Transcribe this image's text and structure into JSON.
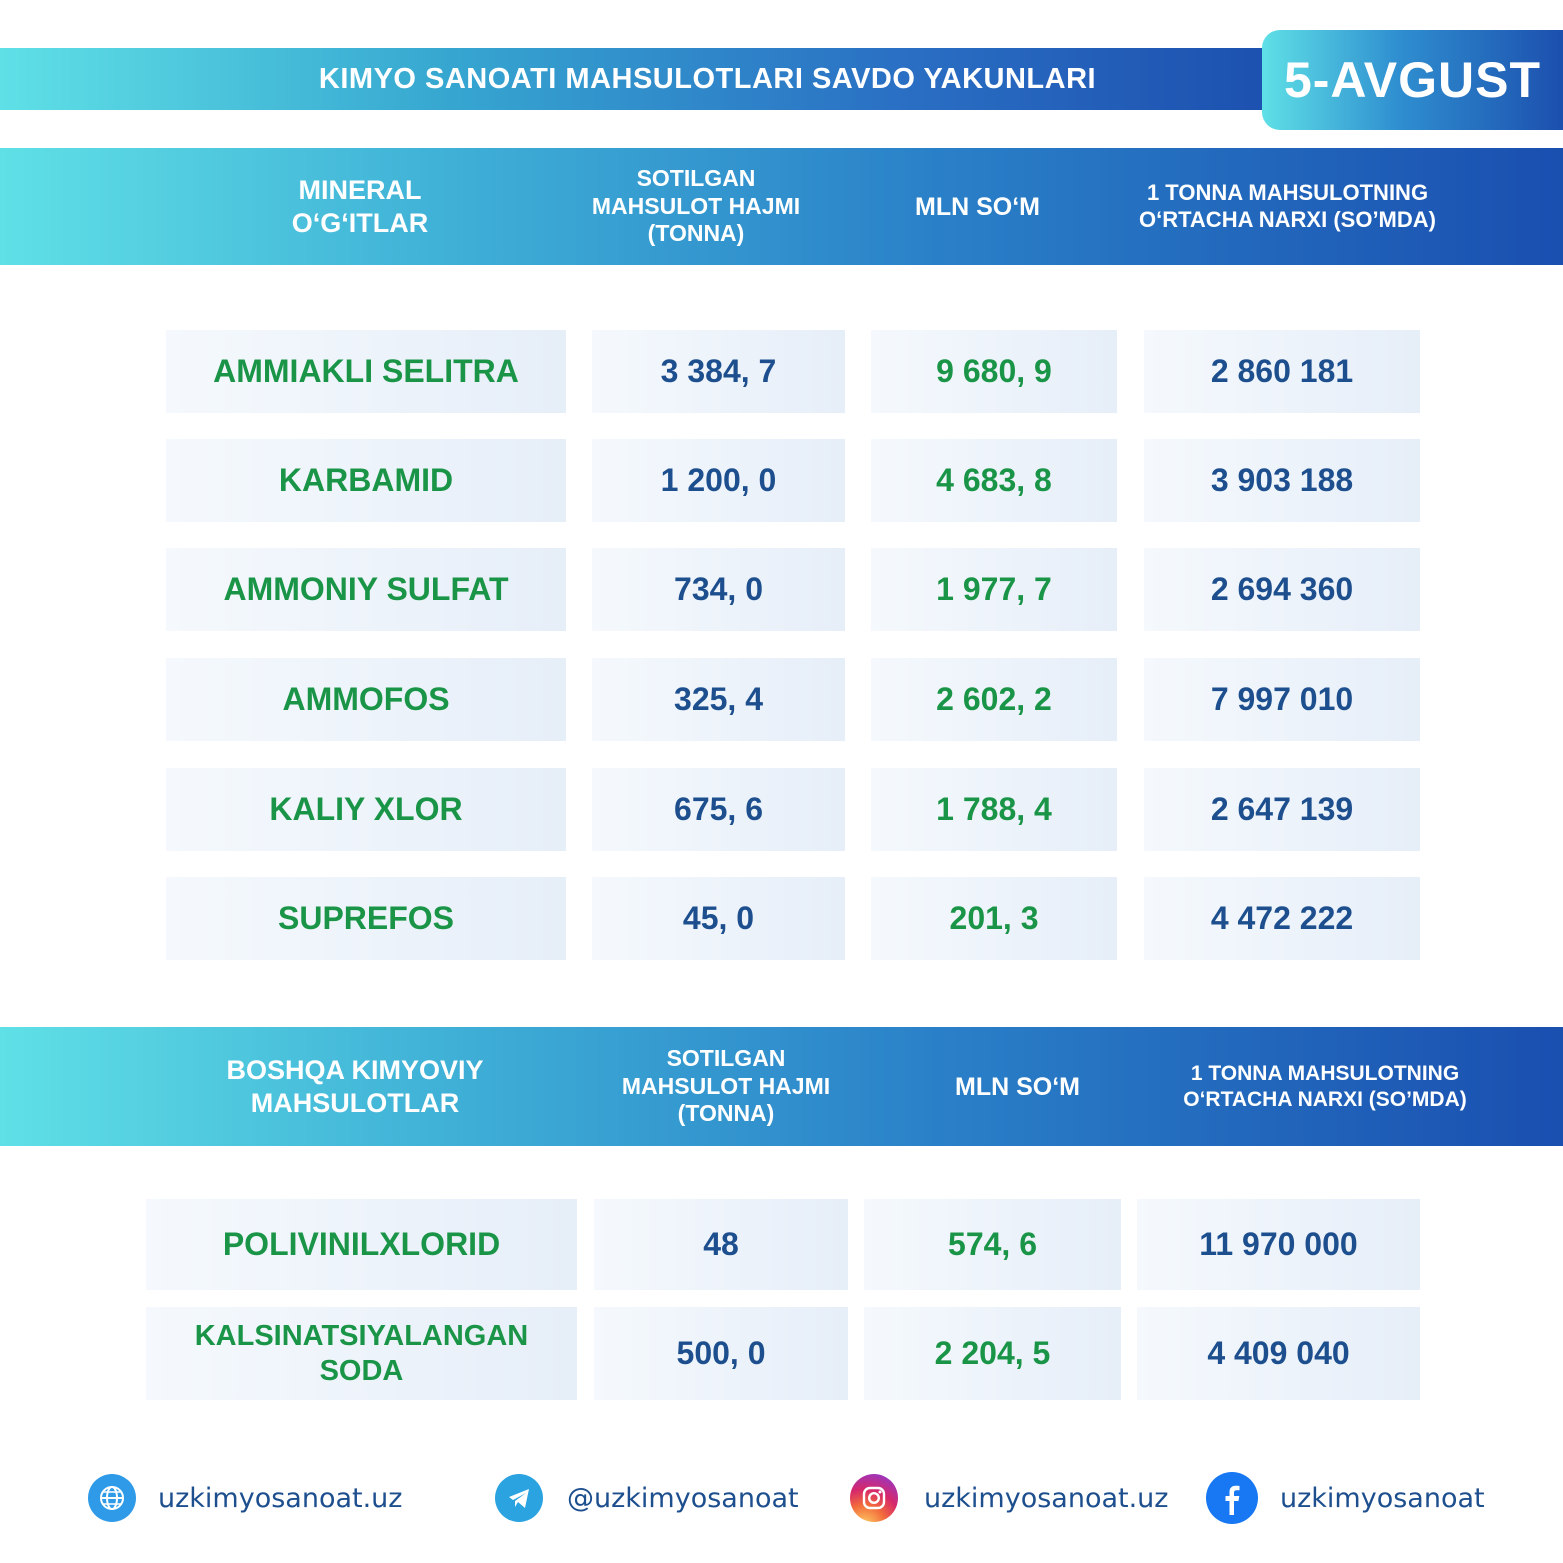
{
  "header": {
    "title": "KIMYO SANOATI MAHSULOTLARI SAVDO YAKUNLARI",
    "date": "5-AVGUST"
  },
  "section1": {
    "headers": [
      "MINERAL O‘G‘ITLAR",
      "SOTILGAN MAHSULOT HAJMI (TONNA)",
      "MLN SO‘M",
      "1 TONNA MAHSULOTNING O‘RTACHA NARXI (SO’MDA)"
    ],
    "rows": [
      {
        "name": "AMMIAKLI SELITRA",
        "volume": "3 384, 7",
        "mln": "9 680, 9",
        "price": "2 860 181"
      },
      {
        "name": "KARBAMID",
        "volume": "1 200, 0",
        "mln": "4 683, 8",
        "price": "3 903 188"
      },
      {
        "name": "AMMONIY SULFAT",
        "volume": "734, 0",
        "mln": "1 977, 7",
        "price": "2 694 360"
      },
      {
        "name": "AMMOFOS",
        "volume": "325, 4",
        "mln": "2 602, 2",
        "price": "7 997 010"
      },
      {
        "name": "KALIY XLOR",
        "volume": "675, 6",
        "mln": "1 788, 4",
        "price": "2 647 139"
      },
      {
        "name": "SUPREFOS",
        "volume": "45, 0",
        "mln": "201, 3",
        "price": "4 472 222"
      }
    ]
  },
  "section2": {
    "headers": [
      "BOSHQA KIMYOVIY MAHSULOTLAR",
      "SOTILGAN MAHSULOT HAJMI (TONNA)",
      "MLN SO‘M",
      "1 TONNA MAHSULOTNING O‘RTACHA NARXI (SO’MDA)"
    ],
    "rows": [
      {
        "name": "POLIVINILXLORID",
        "volume": "48",
        "mln": "574, 6",
        "price": "11 970 000"
      },
      {
        "name": "KALSINATSIYALANGAN SODA",
        "volume": "500, 0",
        "mln": "2 204, 5",
        "price": "4 409 040"
      }
    ]
  },
  "footer": {
    "website": "uzkimyosanoat.uz",
    "telegram": "@uzkimyosanoat",
    "instagram": "uzkimyosanoat.uz",
    "facebook": "uzkimyosanoat",
    "icons": [
      "globe-icon",
      "telegram-icon",
      "instagram-icon",
      "facebook-icon"
    ]
  },
  "colors": {
    "green_text": "#1a9548",
    "blue_text": "#1d4f8e",
    "header_gradient_start": "#5fe0e6",
    "header_gradient_end": "#1a4fb0"
  }
}
